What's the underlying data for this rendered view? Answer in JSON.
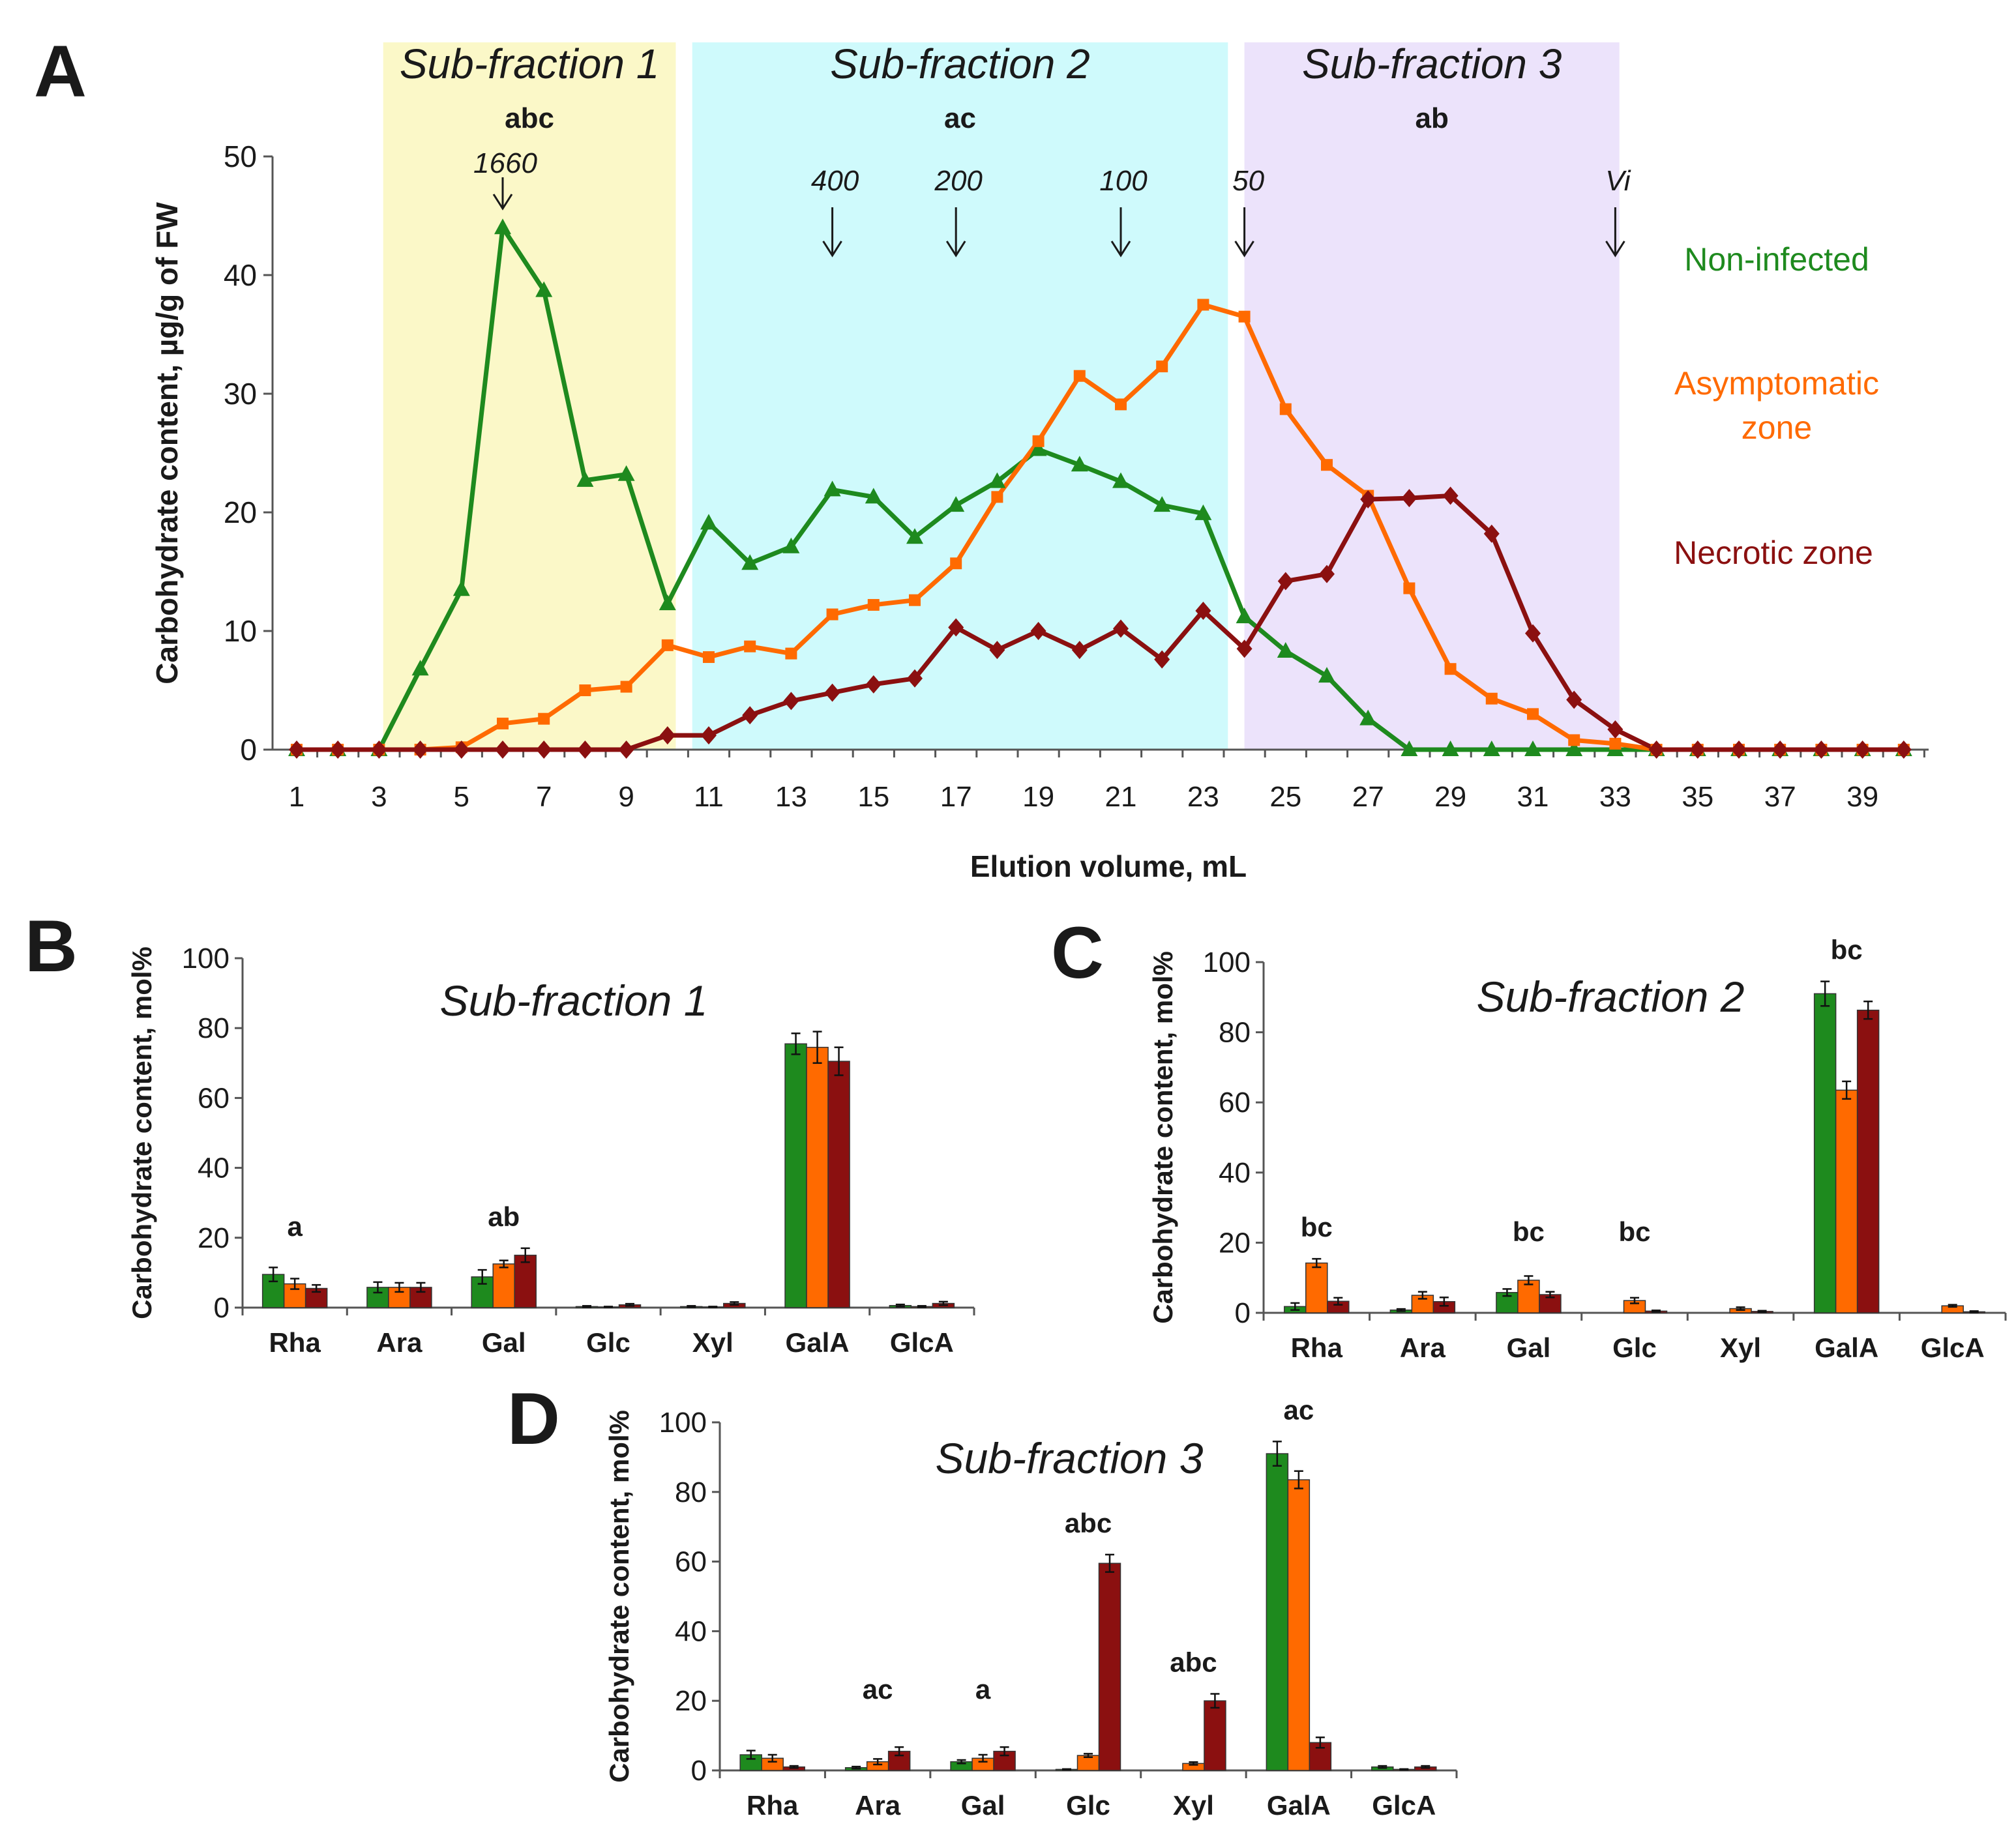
{
  "chart_data": [
    {
      "panel": "A",
      "type": "line",
      "xlabel": "Elution volume, mL",
      "ylabel": "Carbohydrate content, µg/g of FW",
      "xlim": [
        1,
        40
      ],
      "ylim": [
        0,
        50
      ],
      "y_ticks": [
        0,
        10,
        20,
        30,
        40,
        50
      ],
      "x_ticks": [
        1,
        3,
        5,
        7,
        9,
        11,
        13,
        15,
        17,
        19,
        21,
        23,
        25,
        27,
        29,
        31,
        33,
        35,
        37,
        39
      ],
      "regions": [
        {
          "label": "Sub-fraction 1",
          "letters": "abc",
          "x0": 3.1,
          "x1": 10.2,
          "color": "#fbf8c8"
        },
        {
          "label": "Sub-fraction 2",
          "letters": "ac",
          "x0": 10.6,
          "x1": 23.6,
          "color": "#cffafc"
        },
        {
          "label": "Sub-fraction 3",
          "letters": "ab",
          "x0": 24.0,
          "x1": 33.1,
          "color": "#ece3fb"
        }
      ],
      "markers": [
        {
          "label": "1660",
          "x": 6
        },
        {
          "label": "400",
          "x": 14
        },
        {
          "label": "200",
          "x": 17
        },
        {
          "label": "100",
          "x": 21
        },
        {
          "label": "50",
          "x": 24
        },
        {
          "label": "Vi",
          "x": 33
        }
      ],
      "x": [
        1,
        2,
        3,
        4,
        5,
        6,
        7,
        8,
        9,
        10,
        11,
        12,
        13,
        14,
        15,
        16,
        17,
        18,
        19,
        20,
        21,
        22,
        23,
        24,
        25,
        26,
        27,
        28,
        29,
        30,
        31,
        32,
        33,
        34,
        35,
        36,
        37,
        38,
        39,
        40
      ],
      "series": [
        {
          "name": "Non-infected",
          "color": "#1e8a1e",
          "marker": "triangle",
          "values": [
            0,
            0,
            0,
            6.8,
            13.5,
            44,
            38.7,
            22.7,
            23.2,
            12.3,
            19.1,
            15.7,
            17.1,
            21.9,
            21.3,
            17.9,
            20.6,
            22.6,
            25.3,
            24,
            22.6,
            20.6,
            19.9,
            11.2,
            8.3,
            6.2,
            2.6,
            0,
            0,
            0,
            0,
            0,
            0,
            0,
            0,
            0,
            0,
            0,
            0,
            0
          ]
        },
        {
          "name": "Asymptomatic zone",
          "color": "#ff6a00",
          "marker": "square",
          "values": [
            0,
            0,
            0,
            0,
            0.2,
            2.2,
            2.6,
            5,
            5.3,
            8.8,
            7.8,
            8.7,
            8.1,
            11.4,
            12.2,
            12.6,
            15.7,
            21.3,
            26,
            31.5,
            29.1,
            32.3,
            37.5,
            36.5,
            28.7,
            24,
            21.4,
            13.6,
            6.8,
            4.3,
            3,
            0.8,
            0.5,
            0,
            0,
            0,
            0,
            0,
            0,
            0
          ]
        },
        {
          "name": "Necrotic zone",
          "color": "#8b1010",
          "marker": "diamond",
          "values": [
            0,
            0,
            0,
            0,
            0,
            0,
            0,
            0,
            0,
            1.2,
            1.2,
            2.9,
            4.1,
            4.8,
            5.5,
            6,
            10.3,
            8.4,
            10,
            8.4,
            10.2,
            7.6,
            11.7,
            8.5,
            14.2,
            14.8,
            21.1,
            21.2,
            21.4,
            18.2,
            9.8,
            4.2,
            1.7,
            0,
            0,
            0,
            0,
            0,
            0,
            0
          ]
        }
      ]
    },
    {
      "panel": "B",
      "type": "bar",
      "title": "Sub-fraction 1",
      "ylabel": "Carbohydrate content, mol%",
      "ylim": [
        0,
        100
      ],
      "y_ticks": [
        0,
        20,
        40,
        60,
        80,
        100
      ],
      "categories": [
        "Rha",
        "Ara",
        "Gal",
        "Glc",
        "Xyl",
        "GalA",
        "GlcA"
      ],
      "letters": [
        "a",
        "",
        "ab",
        "",
        "",
        "",
        ""
      ],
      "series": [
        {
          "name": "Non-infected",
          "color": "#1e8a1e",
          "values": [
            9.5,
            5.8,
            8.8,
            0.3,
            0.3,
            75.5,
            0.6
          ],
          "errors": [
            2,
            1.5,
            2,
            0.2,
            0.2,
            3,
            0.3
          ]
        },
        {
          "name": "Asymptomatic zone",
          "color": "#ff6a00",
          "values": [
            6.8,
            5.8,
            12.5,
            0.2,
            0.2,
            74.5,
            0.3
          ],
          "errors": [
            1.5,
            1.3,
            1,
            0.1,
            0.1,
            4.5,
            0.2
          ]
        },
        {
          "name": "Necrotic zone",
          "color": "#8b1010",
          "values": [
            5.5,
            5.8,
            15,
            0.8,
            1.2,
            70.5,
            1.2
          ],
          "errors": [
            1,
            1.3,
            2,
            0.3,
            0.4,
            4,
            0.5
          ]
        }
      ]
    },
    {
      "panel": "C",
      "type": "bar",
      "title": "Sub-fraction 2",
      "ylabel": "Carbohydrate content, mol%",
      "ylim": [
        0,
        100
      ],
      "y_ticks": [
        0,
        20,
        40,
        60,
        80,
        100
      ],
      "categories": [
        "Rha",
        "Ara",
        "Gal",
        "Glc",
        "Xyl",
        "GalA",
        "GlcA"
      ],
      "letters": [
        "bc",
        "",
        "bc",
        "bc",
        "",
        "bc",
        ""
      ],
      "series": [
        {
          "name": "Non-infected",
          "color": "#1e8a1e",
          "values": [
            1.8,
            0.8,
            5.8,
            0,
            0,
            91,
            0
          ],
          "errors": [
            1,
            0.3,
            1,
            0,
            0,
            3.5,
            0
          ]
        },
        {
          "name": "Asymptomatic zone",
          "color": "#ff6a00",
          "values": [
            14.2,
            5,
            9.3,
            3.5,
            1.2,
            63.5,
            2
          ],
          "errors": [
            1.2,
            1,
            1.2,
            0.8,
            0.4,
            2.5,
            0.3
          ]
        },
        {
          "name": "Necrotic zone",
          "color": "#8b1010",
          "values": [
            3.3,
            3.2,
            5.2,
            0.5,
            0.4,
            86.3,
            0.3
          ],
          "errors": [
            1,
            1.2,
            0.8,
            0.2,
            0.2,
            2.5,
            0.2
          ]
        }
      ]
    },
    {
      "panel": "D",
      "type": "bar",
      "title": "Sub-fraction 3",
      "ylabel": "Carbohydrate content, mol%",
      "ylim": [
        0,
        100
      ],
      "y_ticks": [
        0,
        20,
        40,
        60,
        80,
        100
      ],
      "categories": [
        "Rha",
        "Ara",
        "Gal",
        "Glc",
        "Xyl",
        "GalA",
        "GlcA"
      ],
      "letters": [
        "",
        "ac",
        "a",
        "abc",
        "abc",
        "ac",
        ""
      ],
      "series": [
        {
          "name": "Non-infected",
          "color": "#1e8a1e",
          "values": [
            4.5,
            0.8,
            2.5,
            0.3,
            0,
            91,
            1
          ],
          "errors": [
            1.2,
            0.3,
            0.5,
            0.1,
            0,
            3.5,
            0.3
          ]
        },
        {
          "name": "Asymptomatic zone",
          "color": "#ff6a00",
          "values": [
            3.5,
            2.5,
            3.5,
            4.3,
            2,
            83.5,
            0.3
          ],
          "errors": [
            1,
            0.8,
            1,
            0.5,
            0.4,
            2.5,
            0.1
          ]
        },
        {
          "name": "Necrotic zone",
          "color": "#8b1010",
          "values": [
            1,
            5.5,
            5.5,
            59.5,
            20,
            8,
            1
          ],
          "errors": [
            0.3,
            1.2,
            1.2,
            2.5,
            2,
            1.5,
            0.3
          ]
        }
      ]
    }
  ],
  "panel_letters": [
    "A",
    "B",
    "C",
    "D"
  ]
}
